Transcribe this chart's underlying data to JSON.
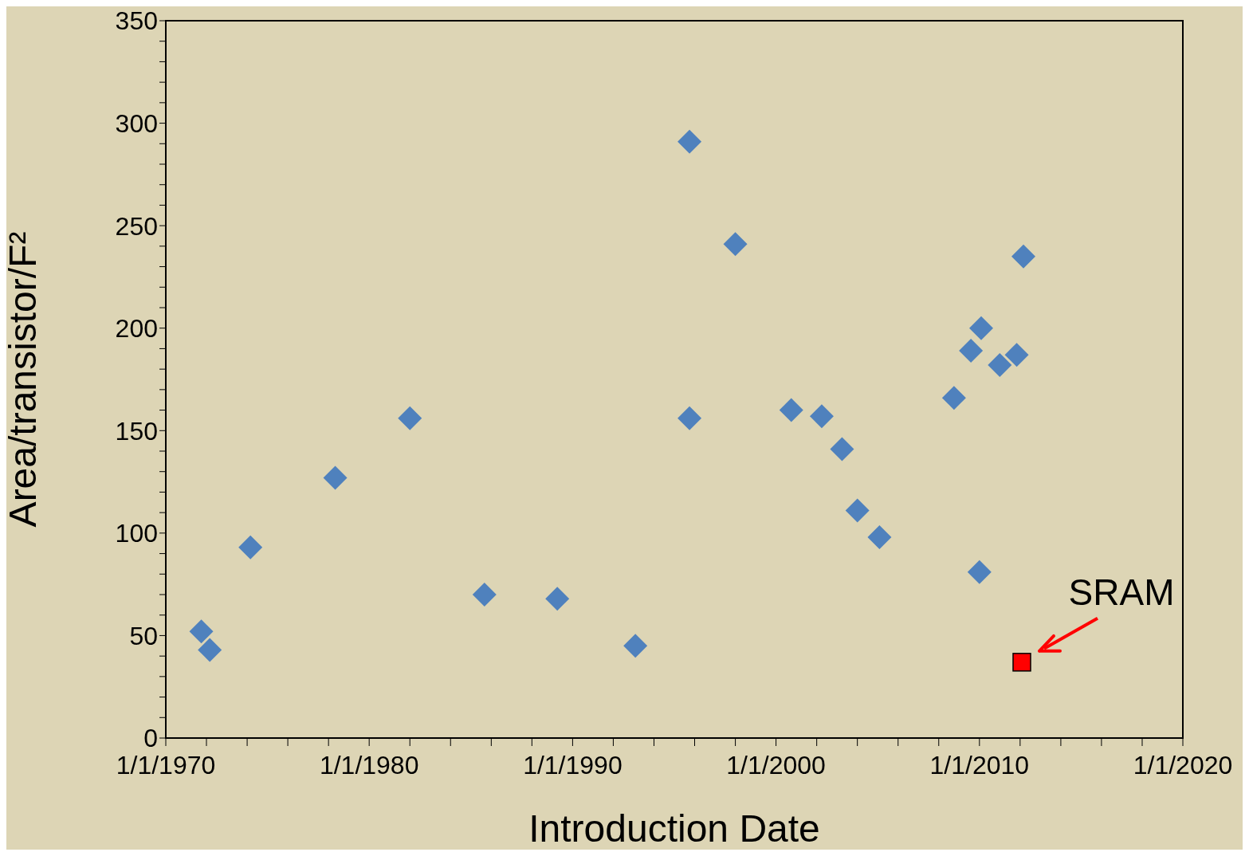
{
  "chart_data": {
    "type": "scatter",
    "xlabel": "Introduction Date",
    "ylabel": "Area/transistor/F²",
    "xlim": [
      "1970-01-01",
      "2020-01-01"
    ],
    "xticks": [
      {
        "value": "1970-01-01",
        "label": "1/1/1970"
      },
      {
        "value": "1972-01-01",
        "label": null
      },
      {
        "value": "1974-01-01",
        "label": null
      },
      {
        "value": "1976-01-01",
        "label": null
      },
      {
        "value": "1978-01-01",
        "label": null
      },
      {
        "value": "1980-01-01",
        "label": "1/1/1980"
      },
      {
        "value": "1982-01-01",
        "label": null
      },
      {
        "value": "1984-01-01",
        "label": null
      },
      {
        "value": "1986-01-01",
        "label": null
      },
      {
        "value": "1988-01-01",
        "label": null
      },
      {
        "value": "1990-01-01",
        "label": "1/1/1990"
      },
      {
        "value": "1992-01-01",
        "label": null
      },
      {
        "value": "1994-01-01",
        "label": null
      },
      {
        "value": "1996-01-01",
        "label": null
      },
      {
        "value": "1998-01-01",
        "label": null
      },
      {
        "value": "2000-01-01",
        "label": "1/1/2000"
      },
      {
        "value": "2002-01-01",
        "label": null
      },
      {
        "value": "2004-01-01",
        "label": null
      },
      {
        "value": "2006-01-01",
        "label": null
      },
      {
        "value": "2008-01-01",
        "label": null
      },
      {
        "value": "2010-01-01",
        "label": "1/1/2010"
      },
      {
        "value": "2012-01-01",
        "label": null
      },
      {
        "value": "2014-01-01",
        "label": null
      },
      {
        "value": "2016-01-01",
        "label": null
      },
      {
        "value": "2018-01-01",
        "label": null
      },
      {
        "value": "2020-01-01",
        "label": "1/1/2020"
      }
    ],
    "ylim": [
      0,
      350
    ],
    "yticks": [
      0,
      {
        "value": 10,
        "label": null
      },
      {
        "value": 20,
        "label": null
      },
      {
        "value": 30,
        "label": null
      },
      {
        "value": 40,
        "label": null
      },
      50,
      {
        "value": 60,
        "label": null
      },
      {
        "value": 70,
        "label": null
      },
      {
        "value": 80,
        "label": null
      },
      {
        "value": 90,
        "label": null
      },
      100,
      {
        "value": 110,
        "label": null
      },
      {
        "value": 120,
        "label": null
      },
      {
        "value": 130,
        "label": null
      },
      {
        "value": 140,
        "label": null
      },
      150,
      {
        "value": 160,
        "label": null
      },
      {
        "value": 170,
        "label": null
      },
      {
        "value": 180,
        "label": null
      },
      {
        "value": 190,
        "label": null
      },
      200,
      {
        "value": 210,
        "label": null
      },
      {
        "value": 220,
        "label": null
      },
      {
        "value": 230,
        "label": null
      },
      {
        "value": 240,
        "label": null
      },
      250,
      {
        "value": 260,
        "label": null
      },
      {
        "value": 270,
        "label": null
      },
      {
        "value": 280,
        "label": null
      },
      {
        "value": 290,
        "label": null
      },
      300,
      {
        "value": 310,
        "label": null
      },
      {
        "value": 320,
        "label": null
      },
      {
        "value": 330,
        "label": null
      },
      {
        "value": 340,
        "label": null
      },
      350
    ],
    "marker": "diamond",
    "series": [
      {
        "color": "#4f81bd",
        "x": [
          "1971-10",
          "1972-03",
          "1974-03",
          "1978-05",
          "1982-01",
          "1985-09",
          "1989-04",
          "1993-02",
          "1995-10",
          "1995-10",
          "1998-01",
          "2000-10",
          "2002-04",
          "2003-04",
          "2004-01",
          "2005-02",
          "2008-10",
          "2009-08",
          "2010-02",
          "2010-01",
          "2011-01",
          "2011-11",
          "2012-03"
        ],
        "values": [
          52,
          43,
          93,
          127,
          156,
          70,
          68,
          45,
          291,
          156,
          241,
          160,
          157,
          141,
          111,
          98,
          166,
          189,
          200,
          81,
          182,
          187,
          235
        ]
      },
      {
        "color": "#ff0000",
        "marker": "square",
        "x": [
          "2012-02"
        ],
        "values": [
          37
        ]
      }
    ],
    "annotations": [
      {
        "text": "SRAM",
        "x": "2012-02",
        "y": 37
      }
    ]
  }
}
